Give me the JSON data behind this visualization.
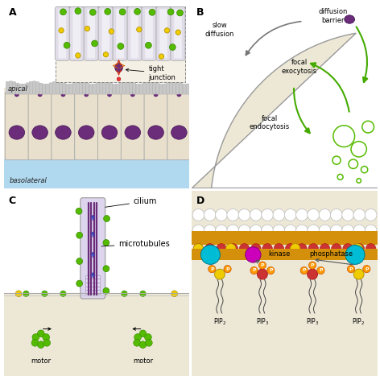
{
  "bg_color": "#ffffff",
  "beige": "#ede8d6",
  "beige2": "#e8e0cc",
  "green": "#55bb00",
  "yellow": "#eecc00",
  "purple": "#6b2d7a",
  "light_purple": "#c8a0d0",
  "cyan": "#00bcd4",
  "orange_mem": "#d4900a",
  "red_mem": "#cc3333",
  "magenta": "#cc00bb",
  "blue_arrow": "#3344bb",
  "arrow_green": "#44aa00",
  "arrow_gray": "#777777",
  "gray_cell": "#c8c8c8",
  "label_A": "A",
  "label_B": "B",
  "label_C": "C",
  "label_D": "D",
  "tight_junction": "tight\njunction",
  "apical": "apical",
  "basolateral": "basolateral",
  "diffusion_barrier": "diffusion\nbarrier",
  "slow_diffusion": "slow\ndiffusion",
  "focal_exocytosis": "focal\nexocytosis",
  "focal_endocytosis": "focal\nendocytosis",
  "cilium": "cilium",
  "microtubules": "microtubules",
  "motor": "motor",
  "kinase": "kinase",
  "phosphatase": "phosphatase",
  "pip2": "PIP$_2$",
  "pip3": "PIP$_3$",
  "lbl_fs": 9,
  "txt_fs": 7,
  "sm_fs": 6
}
